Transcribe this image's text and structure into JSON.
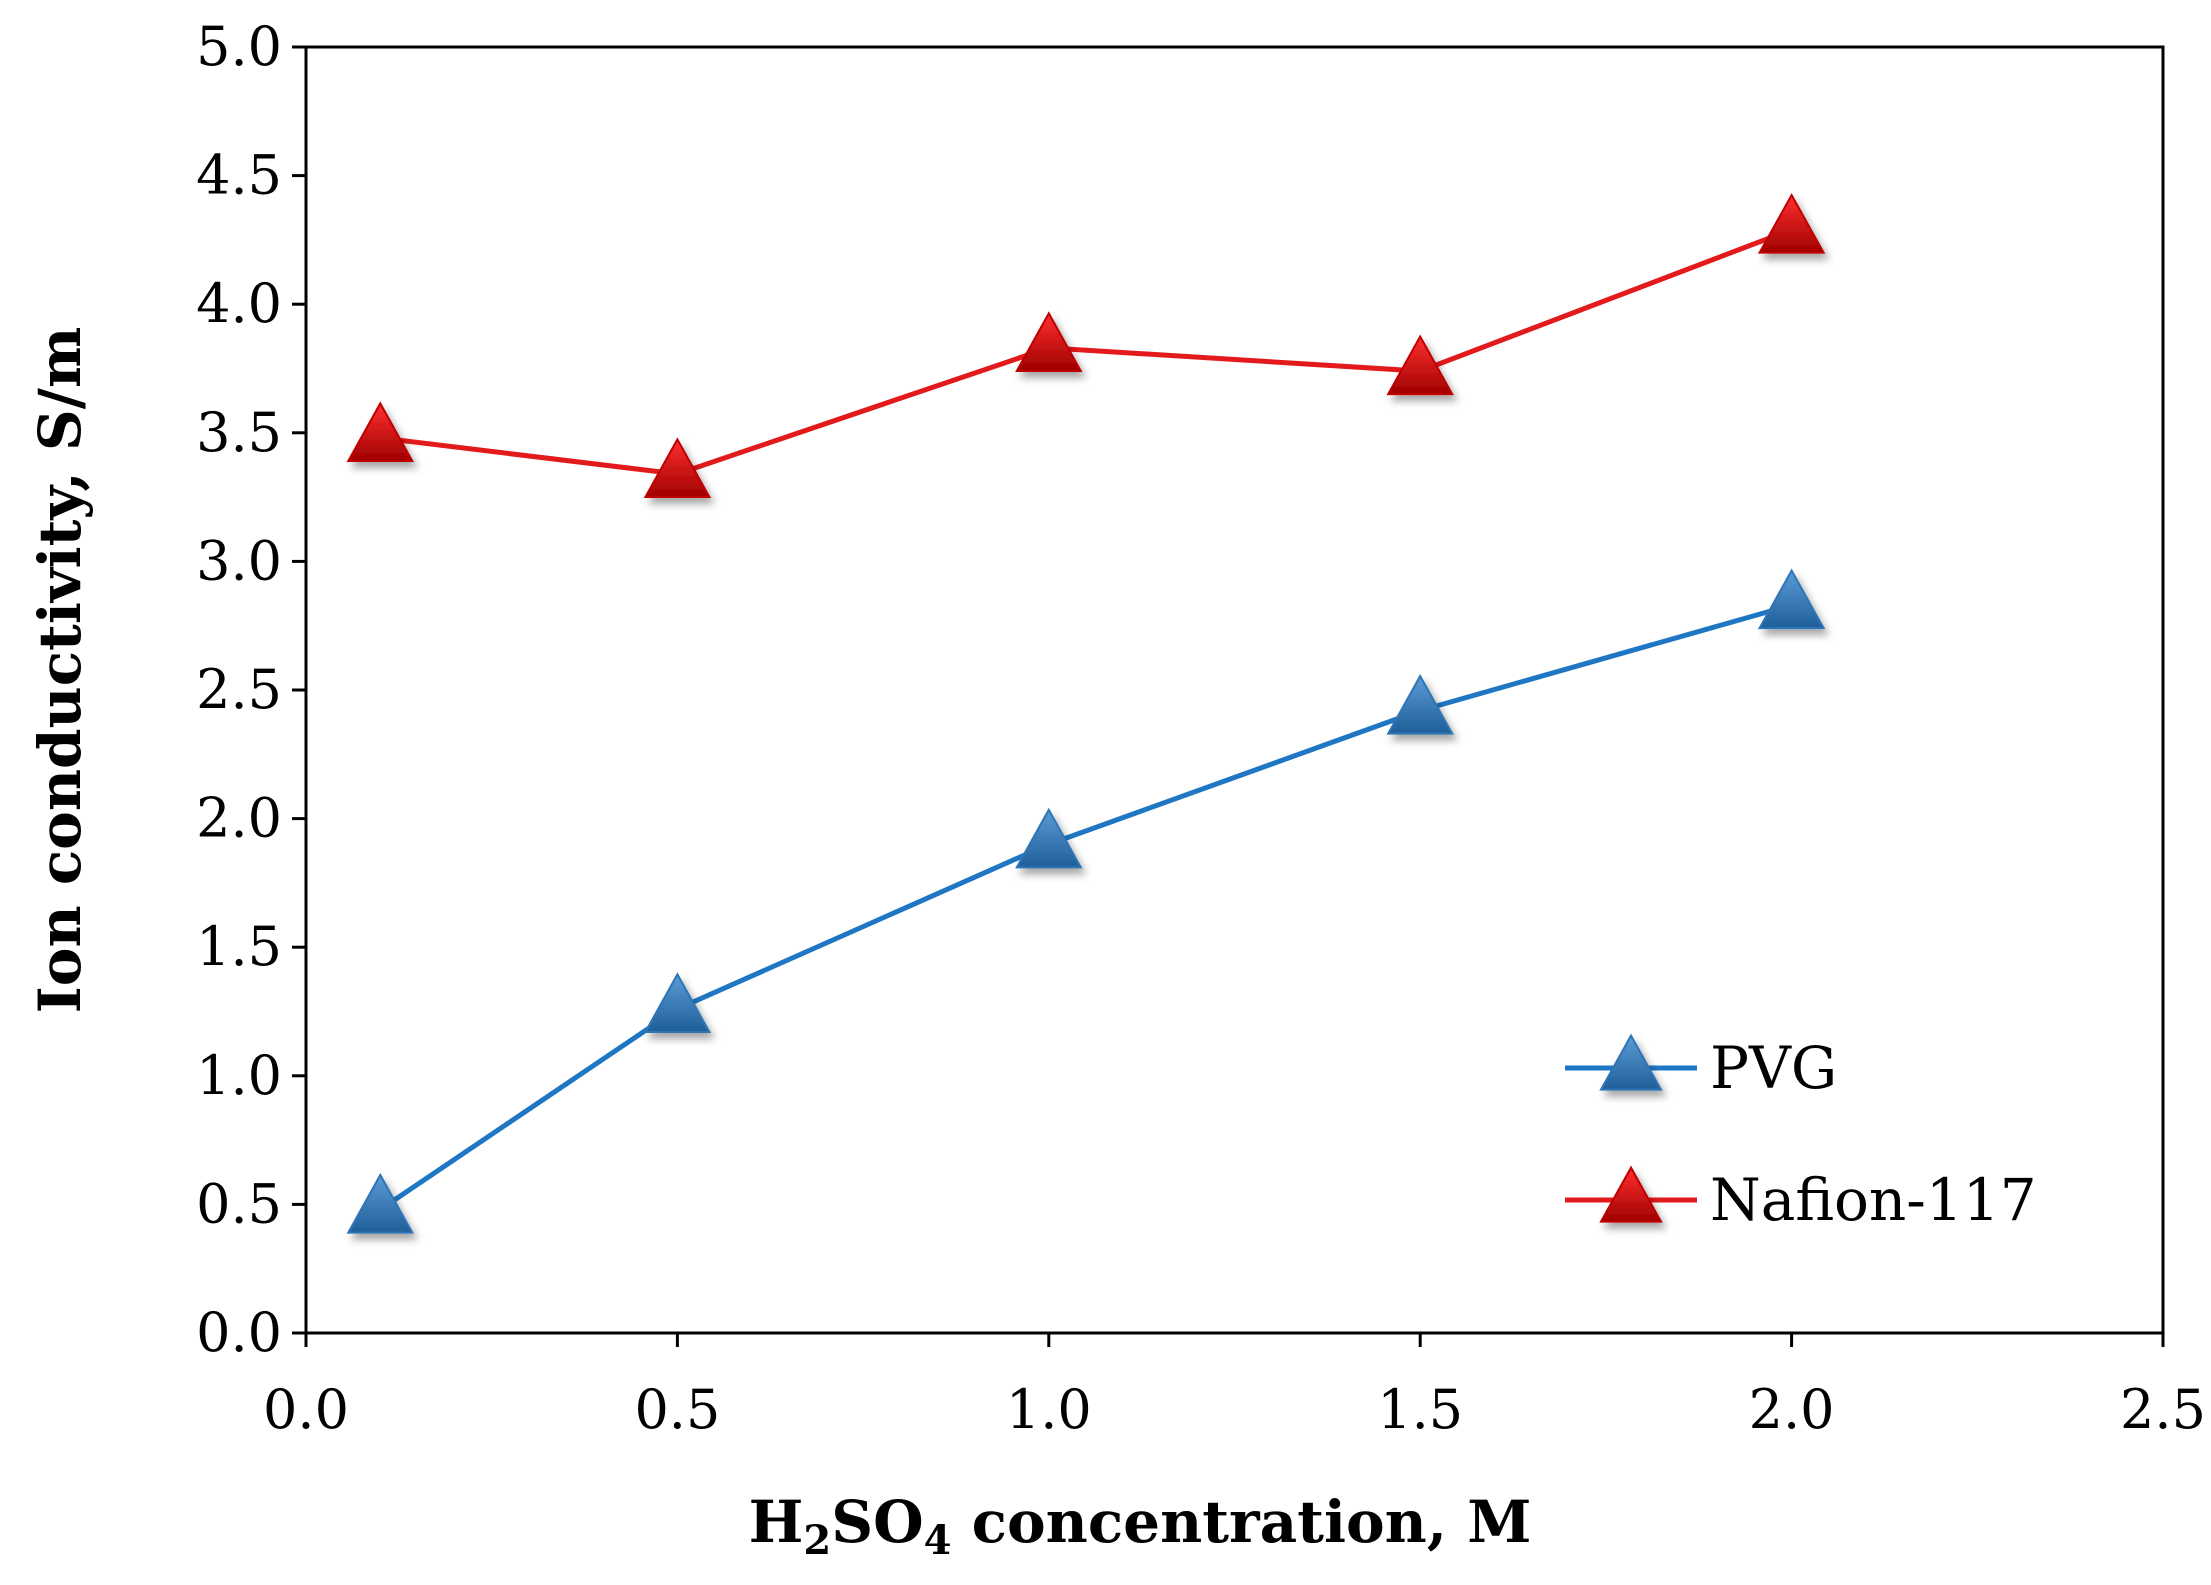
{
  "chart_data": {
    "type": "line",
    "title": "",
    "xlabel": {
      "prefix": "H",
      "sub1": "2",
      "mid": "SO",
      "sub2": "4",
      "suffix": " concentration, M"
    },
    "ylabel": "Ion conductivity, S/m",
    "xlim": [
      0.0,
      2.5
    ],
    "ylim": [
      0.0,
      5.0
    ],
    "xticks": [
      "0.0",
      "0.5",
      "1.0",
      "1.5",
      "2.0",
      "2.5"
    ],
    "yticks": [
      "0.0",
      "0.5",
      "1.0",
      "1.5",
      "2.0",
      "2.5",
      "3.0",
      "3.5",
      "4.0",
      "4.5",
      "5.0"
    ],
    "grid": false,
    "legend_position": "bottom-right",
    "series": [
      {
        "name": "PVG",
        "color": "#1f77c4",
        "marker_color": "#2e75b6",
        "x": [
          0.1,
          0.5,
          1.0,
          1.5,
          2.0
        ],
        "y": [
          0.48,
          1.26,
          1.9,
          2.42,
          2.83
        ]
      },
      {
        "name": "Nafion-117",
        "color": "#e31a1c",
        "marker_color": "#c00000",
        "x": [
          0.1,
          0.5,
          1.0,
          1.5,
          2.0
        ],
        "y": [
          3.48,
          3.34,
          3.83,
          3.74,
          4.29
        ]
      }
    ]
  }
}
